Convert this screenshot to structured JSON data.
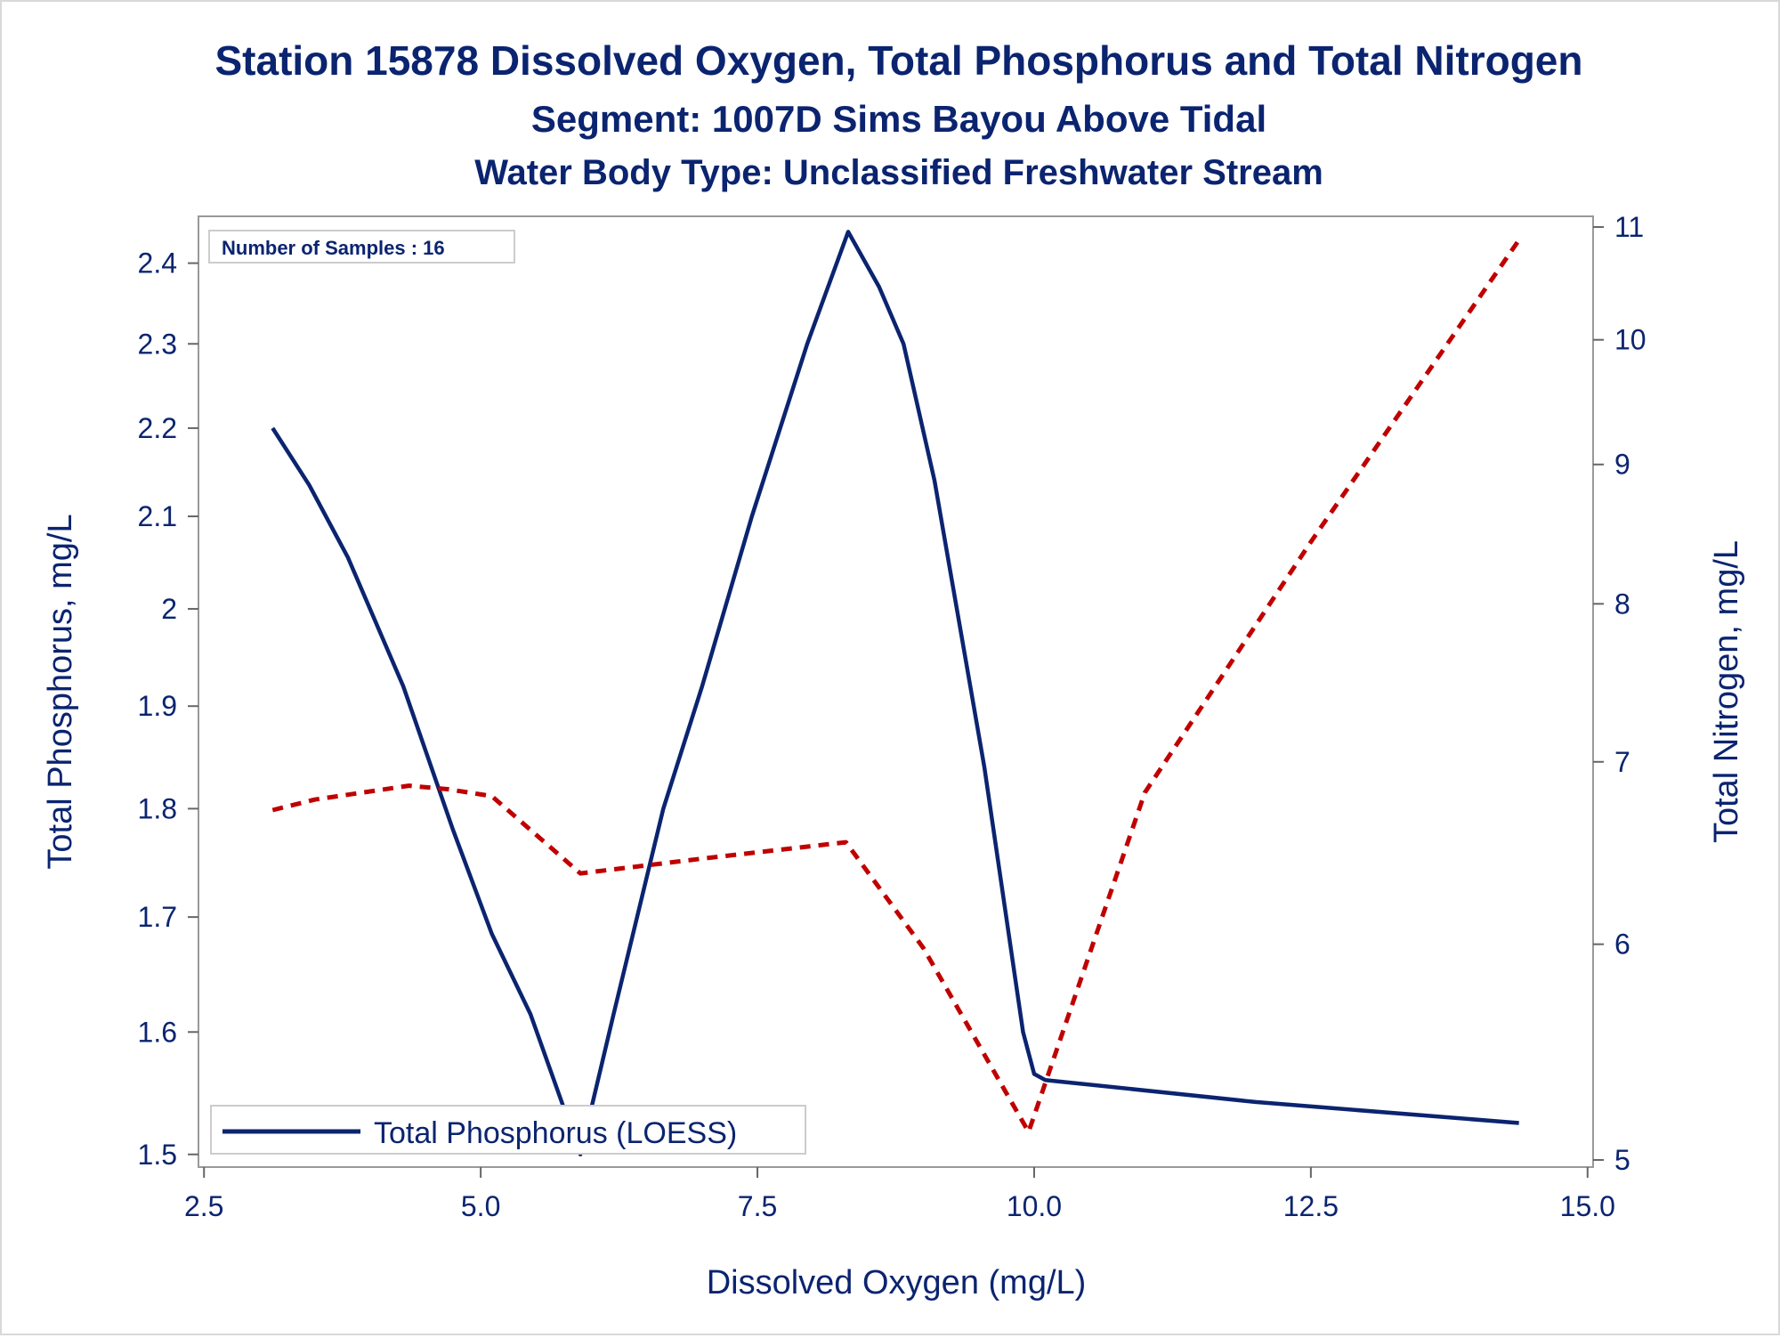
{
  "chart_data": {
    "type": "line",
    "title": "Station 15878  Dissolved Oxygen, Total Phosphorus and Total Nitrogen",
    "subtitle": "Segment: 1007D  Sims Bayou Above Tidal",
    "subtitle2": "Water Body Type: Unclassified Freshwater Stream",
    "xlabel": "Dissolved Oxygen (mg/L)",
    "ylabel": "Total Phosphorus, mg/L",
    "y2label": "Total Nitrogen, mg/L",
    "sample_note": "Number of Samples : 16",
    "xlim": [
      2.45,
      15.05
    ],
    "x_ticks": [
      2.5,
      5.0,
      7.5,
      10.0,
      12.5,
      15.0
    ],
    "x_tick_labels": [
      "2.5",
      "5.0",
      "7.5",
      "10.0",
      "12.5",
      "15.0"
    ],
    "ylim": [
      1.49,
      2.46
    ],
    "y_scale": "log",
    "y_ticks": [
      1.5,
      1.6,
      1.7,
      1.8,
      1.9,
      2.0,
      2.1,
      2.2,
      2.3,
      2.4
    ],
    "y_tick_labels": [
      "1.5",
      "1.6",
      "1.7",
      "1.8",
      "1.9",
      "2",
      "2.1",
      "2.2",
      "2.3",
      "2.4"
    ],
    "y2lim": [
      4.97,
      11.1
    ],
    "y2_scale": "log",
    "y2_ticks": [
      5,
      6,
      7,
      8,
      9,
      10,
      11
    ],
    "y2_tick_labels": [
      "5",
      "6",
      "7",
      "8",
      "9",
      "10",
      "11"
    ],
    "legend_position": "bottom-left",
    "grid": false,
    "series": [
      {
        "name": "Total Phosphorus (LOESS)",
        "axis": "left",
        "color": "#0b2470",
        "style": "solid",
        "x": [
          3.12,
          3.45,
          3.8,
          4.3,
          4.75,
          5.1,
          5.45,
          5.9,
          6.2,
          6.65,
          7.0,
          7.45,
          7.95,
          8.32,
          8.6,
          8.82,
          9.1,
          9.55,
          9.9,
          10.0,
          10.1,
          12.0,
          14.38
        ],
        "y": [
          2.2,
          2.135,
          2.055,
          1.92,
          1.78,
          1.685,
          1.615,
          1.5,
          1.615,
          1.8,
          1.92,
          2.1,
          2.3,
          2.44,
          2.37,
          2.3,
          2.14,
          1.84,
          1.6,
          1.565,
          1.56,
          1.542,
          1.525
        ]
      },
      {
        "name": "",
        "axis": "right",
        "color": "#c00000",
        "style": "dashed",
        "x": [
          3.12,
          3.5,
          4.35,
          4.7,
          5.1,
          5.9,
          7.0,
          8.3,
          9.0,
          9.95,
          11.0,
          12.5,
          14.38
        ],
        "y": [
          6.72,
          6.78,
          6.86,
          6.84,
          6.8,
          6.37,
          6.45,
          6.54,
          5.98,
          5.12,
          6.82,
          8.43,
          10.88
        ]
      }
    ]
  }
}
